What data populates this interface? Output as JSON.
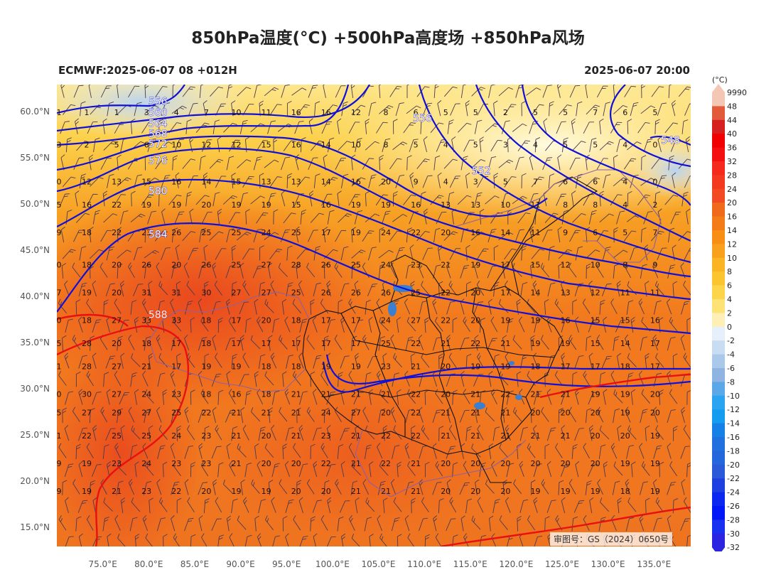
{
  "header": {
    "title": "850hPa温度(°C) +500hPa高度场 +850hPa风场",
    "subtitle_left": "ECMWF:2025-06-07 08 +012H",
    "subtitle_right": "2025-06-07 20:00"
  },
  "map": {
    "lon_range": [
      70,
      139
    ],
    "lat_range": [
      13,
      63
    ],
    "lat_ticks": [
      "60.0°N",
      "55.0°N",
      "50.0°N",
      "45.0°N",
      "40.0°N",
      "35.0°N",
      "30.0°N",
      "25.0°N",
      "20.0°N",
      "15.0°N"
    ],
    "lon_ticks": [
      "75.0°E",
      "80.0°E",
      "85.0°E",
      "90.0°E",
      "95.0°E",
      "100.0°E",
      "105.0°E",
      "110.0°E",
      "115.0°E",
      "120.0°E",
      "125.0°E",
      "130.0°E",
      "135.0°E"
    ],
    "review_number": "审图号：GS（2024）0650号",
    "temperature_rows": [
      {
        "lat": 60,
        "values": [
          "1",
          "1",
          "1",
          "3",
          "4",
          "7",
          "10",
          "11",
          "16",
          "16",
          "12",
          "8",
          "6",
          "5",
          "5",
          "2",
          "5",
          "5",
          "7",
          "6",
          "5"
        ]
      },
      {
        "lat": 56.5,
        "values": [
          "3",
          "2",
          "5",
          "6",
          "10",
          "12",
          "12",
          "15",
          "16",
          "14",
          "10",
          "8",
          "5",
          "4",
          "5",
          "3",
          "4",
          "5",
          "5",
          "4",
          "0"
        ]
      },
      {
        "lat": 52.5,
        "values": [
          "0",
          "12",
          "13",
          "15",
          "16",
          "14",
          "15",
          "13",
          "13",
          "14",
          "16",
          "20",
          "9",
          "4",
          "3",
          "5",
          "7",
          "6",
          "6",
          "4",
          "0"
        ]
      },
      {
        "lat": 50,
        "values": [
          "5",
          "16",
          "22",
          "19",
          "19",
          "20",
          "19",
          "19",
          "15",
          "16",
          "19",
          "19",
          "16",
          "13",
          "13",
          "10",
          "11",
          "8",
          "8",
          "4",
          "2"
        ]
      },
      {
        "lat": 47,
        "values": [
          "9",
          "18",
          "22",
          "23",
          "26",
          "25",
          "25",
          "24",
          "25",
          "17",
          "19",
          "24",
          "22",
          "20",
          "16",
          "14",
          "11",
          "9",
          "6",
          "5",
          "7"
        ]
      },
      {
        "lat": 43.5,
        "values": [
          "0",
          "18",
          "20",
          "26",
          "20",
          "26",
          "25",
          "27",
          "28",
          "26",
          "25",
          "24",
          "23",
          "21",
          "19",
          "17",
          "15",
          "12",
          "10",
          "8",
          "9"
        ]
      },
      {
        "lat": 40.5,
        "values": [
          "7",
          "19",
          "20",
          "31",
          "31",
          "30",
          "27",
          "27",
          "25",
          "26",
          "26",
          "26",
          "25",
          "22",
          "20",
          "17",
          "14",
          "13",
          "12",
          "11",
          "11"
        ]
      },
      {
        "lat": 37.5,
        "values": [
          "0",
          "18",
          "27",
          "33",
          "33",
          "18",
          "17",
          "20",
          "18",
          "17",
          "17",
          "24",
          "27",
          "22",
          "20",
          "19",
          "19",
          "16",
          "15",
          "15",
          "16"
        ]
      },
      {
        "lat": 35,
        "values": [
          "5",
          "28",
          "20",
          "18",
          "17",
          "18",
          "17",
          "17",
          "17",
          "17",
          "17",
          "25",
          "22",
          "21",
          "22",
          "21",
          "19",
          "19",
          "15",
          "14",
          "17"
        ]
      },
      {
        "lat": 32.5,
        "values": [
          "1",
          "28",
          "27",
          "21",
          "17",
          "19",
          "19",
          "18",
          "18",
          "19",
          "19",
          "23",
          "21",
          "20",
          "19",
          "19",
          "18",
          "17",
          "17",
          "18",
          "17"
        ]
      },
      {
        "lat": 29.5,
        "values": [
          "0",
          "30",
          "27",
          "24",
          "23",
          "18",
          "16",
          "18",
          "21",
          "21",
          "21",
          "21",
          "22",
          "20",
          "21",
          "22",
          "21",
          "21",
          "19",
          "19",
          "20"
        ]
      },
      {
        "lat": 27.5,
        "values": [
          "5",
          "27",
          "29",
          "27",
          "25",
          "22",
          "21",
          "21",
          "21",
          "24",
          "27",
          "20",
          "22",
          "21",
          "21",
          "21",
          "20",
          "20",
          "20",
          "19",
          "20"
        ]
      },
      {
        "lat": 25,
        "values": [
          "1",
          "22",
          "25",
          "25",
          "24",
          "23",
          "21",
          "20",
          "21",
          "23",
          "21",
          "22",
          "22",
          "21",
          "21",
          "21",
          "21",
          "21",
          "20",
          "20",
          "19"
        ]
      },
      {
        "lat": 22,
        "values": [
          "9",
          "19",
          "23",
          "24",
          "23",
          "23",
          "21",
          "20",
          "20",
          "22",
          "21",
          "22",
          "21",
          "20",
          "20",
          "20",
          "20",
          "20",
          "20",
          "19",
          "19"
        ]
      },
      {
        "lat": 19,
        "values": [
          "9",
          "19",
          "21",
          "23",
          "22",
          "20",
          "19",
          "19",
          "20",
          "20",
          "21",
          "21",
          "21",
          "20",
          "20",
          "20",
          "19",
          "19",
          "19",
          "18",
          "19"
        ]
      }
    ],
    "height_labels": [
      {
        "text": "556",
        "lon": 81,
        "lat": 61.2
      },
      {
        "text": "560",
        "lon": 81,
        "lat": 60
      },
      {
        "text": "564",
        "lon": 81,
        "lat": 58.8
      },
      {
        "text": "568",
        "lon": 81,
        "lat": 57.7
      },
      {
        "text": "572",
        "lon": 81,
        "lat": 56.6
      },
      {
        "text": "576",
        "lon": 81,
        "lat": 54.8
      },
      {
        "text": "580",
        "lon": 81,
        "lat": 51.5
      },
      {
        "text": "584",
        "lon": 81,
        "lat": 46.8
      },
      {
        "text": "588",
        "lon": 81,
        "lat": 38.1
      },
      {
        "text": "556",
        "lon": 109.8,
        "lat": 59.4
      },
      {
        "text": "552",
        "lon": 116.2,
        "lat": 53.7
      },
      {
        "text": "548",
        "lon": 136.8,
        "lat": 57
      }
    ],
    "colors": {
      "contour_blue": "#1010d8",
      "contour_red": "#e81010",
      "border_black": "#111111",
      "border_purple": "#9060a0",
      "lake": "#3a7fd0"
    }
  },
  "colorbar": {
    "unit": "(°C)",
    "labels": [
      "9990",
      "48",
      "44",
      "40",
      "36",
      "32",
      "28",
      "24",
      "20",
      "16",
      "14",
      "12",
      "10",
      "8",
      "6",
      "4",
      "2",
      "0",
      "-2",
      "-4",
      "-6",
      "-8",
      "-10",
      "-12",
      "-14",
      "-16",
      "-18",
      "-20",
      "-22",
      "-24",
      "-26",
      "-28",
      "-30",
      "-32"
    ],
    "colors": [
      "#f3c7b3",
      "#e35a3a",
      "#d62020",
      "#f00000",
      "#f41010",
      "#f52a1c",
      "#f33a20",
      "#f24a22",
      "#f06a1c",
      "#f47c18",
      "#f88e14",
      "#f9a01c",
      "#fab424",
      "#fbc530",
      "#fcd54a",
      "#fde276",
      "#feefb6",
      "#e6f0fa",
      "#c8dcf2",
      "#aac8ea",
      "#8fb4e2",
      "#5aa8e8",
      "#2aa4f0",
      "#149cf0",
      "#1480e8",
      "#2070e0",
      "#2466dc",
      "#2a5ad8",
      "#1e40e0",
      "#0b28f0",
      "#0018f8",
      "#1830f0",
      "#2c24e0"
    ]
  }
}
